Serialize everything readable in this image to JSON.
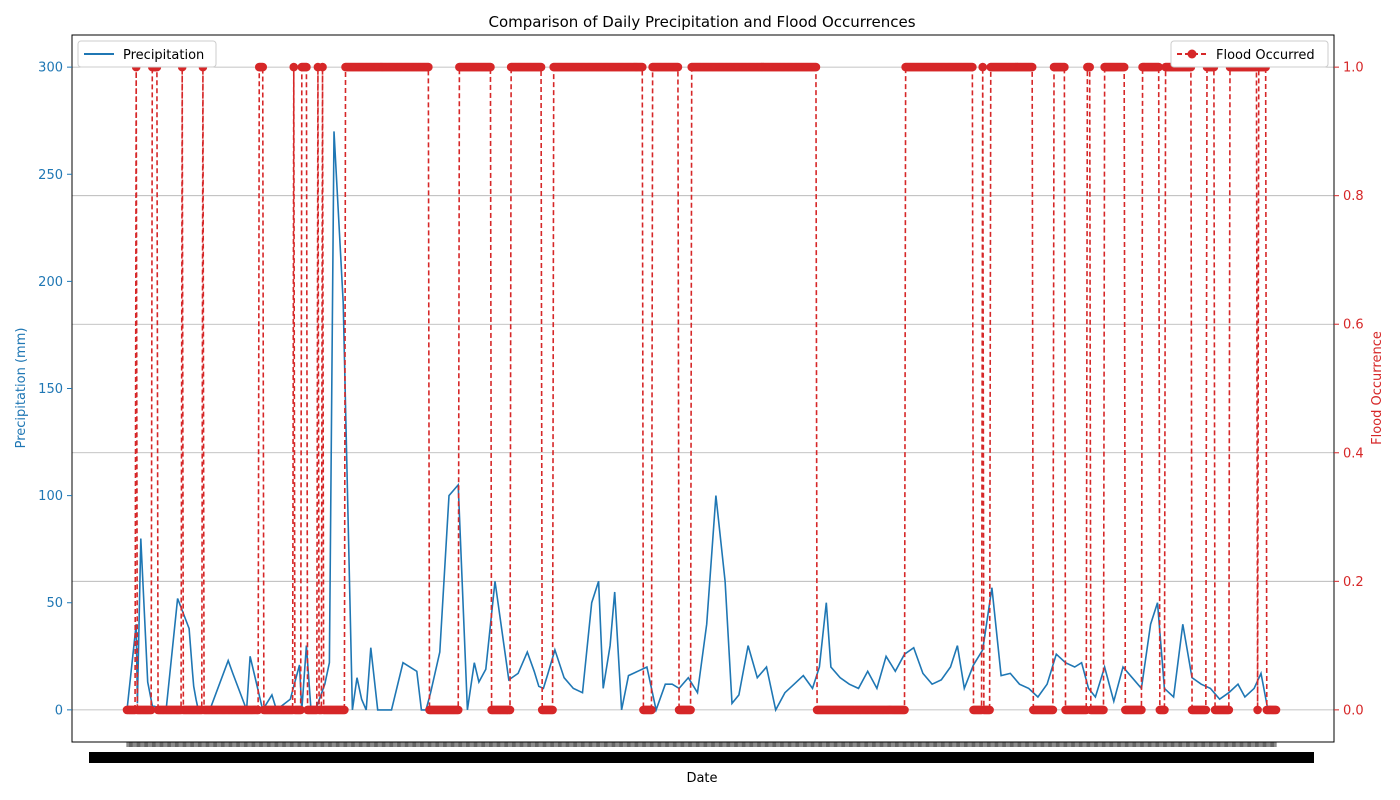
{
  "chart_data": {
    "type": "line",
    "title": "Comparison of Daily Precipitation and Flood Occurrences",
    "xlabel": "Date",
    "ylabel_left": "Precipitation (mm)",
    "ylabel_right": "Flood Occurrence",
    "ylim_left": [
      -15,
      315
    ],
    "ylim_right": [
      -0.05,
      1.05
    ],
    "yticks_left": [
      0,
      50,
      100,
      150,
      200,
      250,
      300
    ],
    "yticks_right": [
      0.0,
      0.2,
      0.4,
      0.6,
      0.8,
      1.0
    ],
    "ytick_labels_right": [
      "0.0",
      "0.2",
      "0.4",
      "0.6",
      "0.8",
      "1.0"
    ],
    "x_tick_count": 1000,
    "grid": true,
    "x_tick_labels_overlapping": true,
    "series": [
      {
        "name": "Precipitation",
        "axis": "left",
        "color": "#1f77b4",
        "style": "solid",
        "x_days": [
          0,
          8,
          9,
          12,
          18,
          22,
          34,
          44,
          54,
          57,
          58,
          60,
          62,
          66,
          72,
          88,
          92,
          104,
          107,
          118,
          126,
          130,
          142,
          150,
          152,
          156,
          160,
          164,
          172,
          176,
          180,
          188,
          196,
          200,
          204,
          208,
          212,
          218,
          230,
          240,
          252,
          256,
          260,
          264,
          272,
          280,
          288,
          296,
          302,
          306,
          312,
          320,
          332,
          340,
          348,
          354,
          358,
          362,
          366,
          372,
          380,
          388,
          396,
          404,
          410,
          414,
          420,
          424,
          430,
          436,
          444,
          452,
          460,
          468,
          474,
          480,
          488,
          496,
          504,
          512,
          520,
          526,
          532,
          540,
          548,
          556,
          564,
          572,
          580,
          588,
          596,
          602,
          608,
          612,
          620,
          628,
          636,
          644,
          652,
          660,
          668,
          676,
          684,
          692,
          700,
          708,
          716,
          722,
          728,
          736,
          744,
          752,
          760,
          768,
          776,
          784,
          792,
          800,
          808,
          816,
          824,
          830,
          836,
          842,
          850,
          858,
          866,
          874,
          882,
          890,
          896,
          902,
          910,
          918,
          926,
          934,
          942,
          950,
          958,
          966,
          972,
          980,
          986,
          992
        ],
        "values": [
          0,
          40,
          3,
          80,
          13,
          2,
          0,
          52,
          38,
          17,
          11,
          5,
          0,
          0,
          0,
          23,
          17,
          0,
          25,
          0,
          7,
          0,
          5,
          21,
          0,
          30,
          0,
          0,
          12,
          22,
          270,
          190,
          0,
          15,
          5,
          0,
          29,
          0,
          0,
          22,
          18,
          0,
          0,
          8,
          27,
          100,
          105,
          0,
          22,
          13,
          19,
          60,
          14,
          17,
          27,
          18,
          11,
          10,
          17,
          28,
          15,
          10,
          8,
          50,
          60,
          10,
          30,
          55,
          0,
          16,
          18,
          20,
          0,
          12,
          12,
          10,
          15,
          8,
          40,
          100,
          60,
          3,
          7,
          30,
          15,
          20,
          0,
          8,
          12,
          16,
          10,
          20,
          50,
          20,
          15,
          12,
          10,
          18,
          10,
          25,
          18,
          26,
          29,
          17,
          12,
          14,
          20,
          30,
          10,
          21,
          28,
          57,
          16,
          17,
          12,
          10,
          6,
          12,
          26,
          22,
          20,
          22,
          10,
          6,
          20,
          4,
          20,
          15,
          10,
          40,
          50,
          10,
          6,
          40,
          15,
          12,
          10,
          5,
          8,
          12,
          6,
          10,
          17,
          0
        ]
      },
      {
        "name": "Flood Occurred",
        "axis": "right",
        "color": "#d62728",
        "style": "dashed",
        "marker": "circle",
        "flood_day_ranges": [
          [
            8,
            8
          ],
          [
            22,
            26
          ],
          [
            48,
            48
          ],
          [
            66,
            66
          ],
          [
            115,
            118
          ],
          [
            145,
            145
          ],
          [
            152,
            156
          ],
          [
            166,
            166
          ],
          [
            170,
            170
          ],
          [
            190,
            262
          ],
          [
            289,
            316
          ],
          [
            334,
            360
          ],
          [
            371,
            448
          ],
          [
            457,
            479
          ],
          [
            491,
            599
          ],
          [
            677,
            735
          ],
          [
            744,
            744
          ],
          [
            751,
            787
          ],
          [
            806,
            815
          ],
          [
            835,
            837
          ],
          [
            850,
            867
          ],
          [
            883,
            897
          ],
          [
            903,
            925
          ],
          [
            939,
            945
          ],
          [
            959,
            982
          ],
          [
            984,
            990
          ]
        ],
        "total_days": 1000
      }
    ]
  }
}
